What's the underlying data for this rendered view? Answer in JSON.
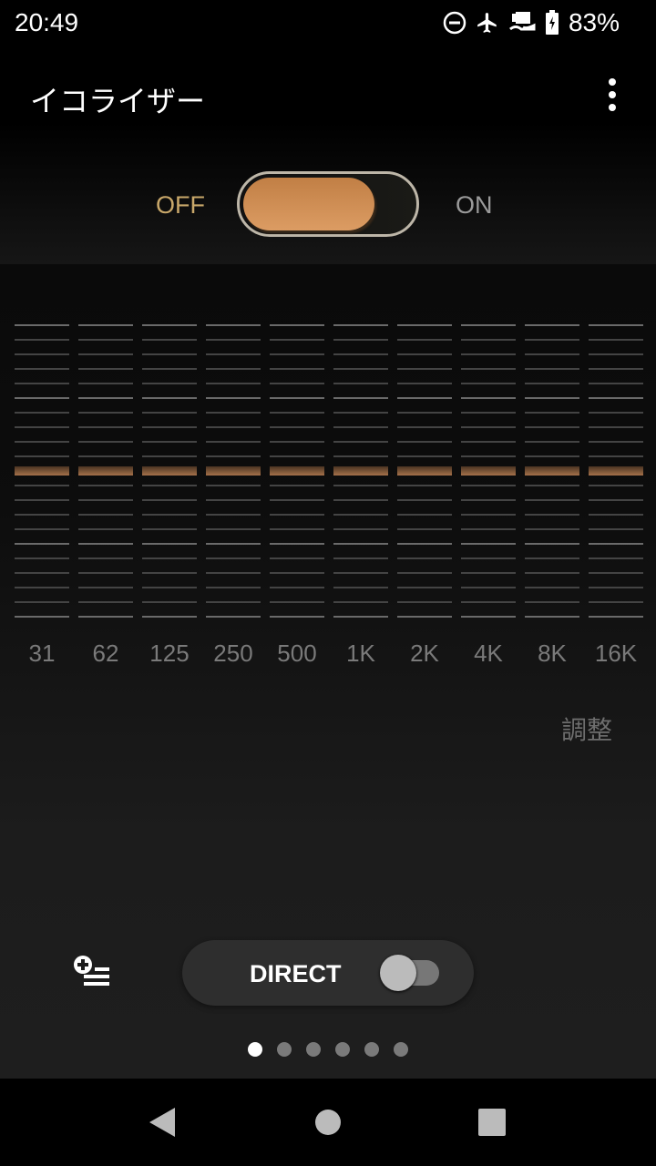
{
  "status": {
    "time": "20:49",
    "battery": "83%",
    "icons": [
      "do-not-disturb-icon",
      "airplane-icon",
      "data-saver-icon",
      "battery-charging-icon"
    ]
  },
  "appbar": {
    "title": "イコライザー",
    "menu_icon": "more-vert-icon"
  },
  "power": {
    "off_label": "OFF",
    "on_label": "ON",
    "state": "off",
    "accent": "#d08d55"
  },
  "equalizer": {
    "bands": [
      {
        "label": "31",
        "gain_level": 0
      },
      {
        "label": "62",
        "gain_level": 0
      },
      {
        "label": "125",
        "gain_level": 0
      },
      {
        "label": "250",
        "gain_level": 0
      },
      {
        "label": "500",
        "gain_level": 0
      },
      {
        "label": "1K",
        "gain_level": 0
      },
      {
        "label": "2K",
        "gain_level": 0
      },
      {
        "label": "4K",
        "gain_level": 0
      },
      {
        "label": "8K",
        "gain_level": 0
      },
      {
        "label": "16K",
        "gain_level": 0
      }
    ],
    "steps": 21
  },
  "adjust_label": "調整",
  "bottom": {
    "add_preset_icon": "playlist-add-icon",
    "direct_label": "DIRECT",
    "direct_on": false,
    "page_count": 6,
    "active_page": 0
  },
  "nav": {
    "back": "back-icon",
    "home": "home-icon",
    "recents": "recents-icon"
  }
}
